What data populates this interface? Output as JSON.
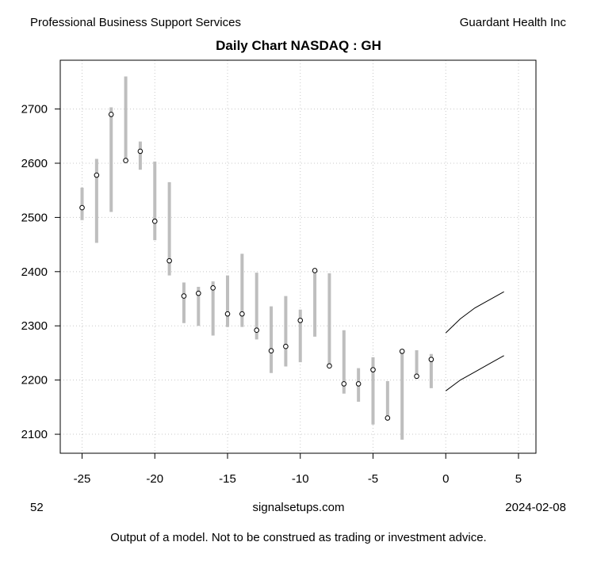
{
  "header": {
    "sector": "Professional Business Support Services",
    "company": "Guardant Health Inc"
  },
  "footer": {
    "number": "52",
    "site": "signalsetups.com",
    "date": "2024-02-08",
    "disclaimer": "Output of a model.  Not to be construed as trading or investment advice."
  },
  "chart_data": {
    "type": "candlestick",
    "title": "Daily Chart NASDAQ : GH",
    "xlabel": "",
    "ylabel": "",
    "xlim": [
      -26.5,
      6.2
    ],
    "ylim": [
      2065,
      2790
    ],
    "x_ticks": [
      -25,
      -20,
      -15,
      -10,
      -5,
      0,
      5
    ],
    "y_ticks": [
      2100,
      2200,
      2300,
      2400,
      2500,
      2600,
      2700
    ],
    "grid": true,
    "range_color": "#bebebe",
    "bars": [
      {
        "x": -25,
        "low": 2495,
        "high": 2555,
        "close": 2518
      },
      {
        "x": -24,
        "low": 2453,
        "high": 2608,
        "close": 2578
      },
      {
        "x": -23,
        "low": 2510,
        "high": 2703,
        "close": 2690
      },
      {
        "x": -22,
        "low": 2605,
        "high": 2760,
        "close": 2605
      },
      {
        "x": -21,
        "low": 2588,
        "high": 2640,
        "close": 2622
      },
      {
        "x": -20,
        "low": 2458,
        "high": 2603,
        "close": 2493
      },
      {
        "x": -19,
        "low": 2393,
        "high": 2565,
        "close": 2420
      },
      {
        "x": -18,
        "low": 2305,
        "high": 2380,
        "close": 2355
      },
      {
        "x": -17,
        "low": 2300,
        "high": 2372,
        "close": 2360
      },
      {
        "x": -16,
        "low": 2282,
        "high": 2382,
        "close": 2370
      },
      {
        "x": -15,
        "low": 2298,
        "high": 2393,
        "close": 2322
      },
      {
        "x": -14,
        "low": 2298,
        "high": 2433,
        "close": 2322
      },
      {
        "x": -13,
        "low": 2275,
        "high": 2398,
        "close": 2292
      },
      {
        "x": -12,
        "low": 2213,
        "high": 2336,
        "close": 2254
      },
      {
        "x": -11,
        "low": 2225,
        "high": 2355,
        "close": 2262
      },
      {
        "x": -10,
        "low": 2233,
        "high": 2330,
        "close": 2310
      },
      {
        "x": -9,
        "low": 2280,
        "high": 2403,
        "close": 2402
      },
      {
        "x": -8,
        "low": 2225,
        "high": 2397,
        "close": 2226
      },
      {
        "x": -7,
        "low": 2175,
        "high": 2292,
        "close": 2193
      },
      {
        "x": -6,
        "low": 2160,
        "high": 2222,
        "close": 2193
      },
      {
        "x": -5,
        "low": 2118,
        "high": 2242,
        "close": 2219
      },
      {
        "x": -4,
        "low": 2130,
        "high": 2198,
        "close": 2130
      },
      {
        "x": -3,
        "low": 2090,
        "high": 2253,
        "close": 2253
      },
      {
        "x": -2,
        "low": 2202,
        "high": 2255,
        "close": 2207
      },
      {
        "x": -1,
        "low": 2185,
        "high": 2248,
        "close": 2238
      }
    ],
    "forecast_lines": [
      {
        "x": [
          0,
          1,
          2,
          3,
          4
        ],
        "y": [
          2287,
          2313,
          2333,
          2348,
          2363
        ]
      },
      {
        "x": [
          0,
          1,
          2,
          3,
          4
        ],
        "y": [
          2180,
          2200,
          2215,
          2230,
          2245
        ]
      }
    ]
  }
}
